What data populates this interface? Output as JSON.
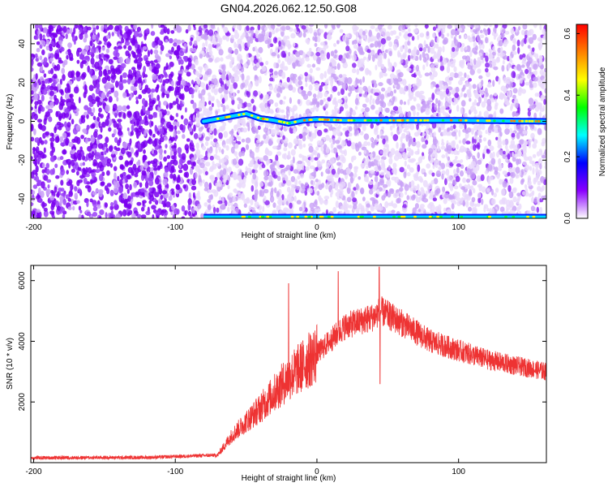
{
  "title": "GN04.2026.062.12.50.G08",
  "chart_data": [
    {
      "type": "heatmap",
      "xlabel": "Height of straight line (km)",
      "ylabel": "Frequency (Hz)",
      "xlim": [
        -202,
        162
      ],
      "ylim": [
        -50,
        50
      ],
      "xticks": [
        -200,
        -100,
        0,
        100
      ],
      "yticks": [
        -40,
        -20,
        0,
        20,
        40
      ],
      "colorbar": {
        "label": "Normalized spectral amplitude",
        "range": [
          0,
          0.63
        ],
        "ticks": [
          "0.0",
          "0.2",
          "0.4",
          "0.6"
        ],
        "colors": [
          "#ffffff",
          "#8a00ff",
          "#0000ff",
          "#00ffff",
          "#00ff00",
          "#ffff00",
          "#ff8000",
          "#ff0000"
        ]
      },
      "ridge": {
        "x": [
          -80,
          -65,
          -50,
          -40,
          -30,
          -20,
          -10,
          0,
          20,
          50,
          100,
          162
        ],
        "y": [
          0,
          2,
          4,
          1.5,
          0.5,
          -1,
          0.5,
          1,
          0.5,
          0.5,
          0.5,
          0
        ]
      },
      "speckle_density_change_x": -86
    },
    {
      "type": "line",
      "xlabel": "Height of straight line (km)",
      "ylabel": "SNR (10 * v/v)",
      "xlim": [
        -202,
        162
      ],
      "ylim": [
        0,
        6500
      ],
      "xticks": [
        -200,
        -100,
        0,
        100
      ],
      "yticks": [
        2000,
        4000,
        6000
      ],
      "color": "#ee3333",
      "envelope": {
        "x": [
          -202,
          -120,
          -70,
          -60,
          -40,
          -20,
          0,
          20,
          40,
          45,
          60,
          80,
          100,
          120,
          140,
          162
        ],
        "y": [
          160,
          170,
          250,
          900,
          1800,
          2800,
          3600,
          4500,
          4800,
          5000,
          4600,
          4000,
          3700,
          3400,
          3200,
          3000
        ]
      },
      "spikes": [
        {
          "x": -20,
          "y": 5900
        },
        {
          "x": 15,
          "y": 6300
        },
        {
          "x": 44,
          "y": 6450
        },
        {
          "x": 44.5,
          "y": 2600
        }
      ]
    }
  ]
}
